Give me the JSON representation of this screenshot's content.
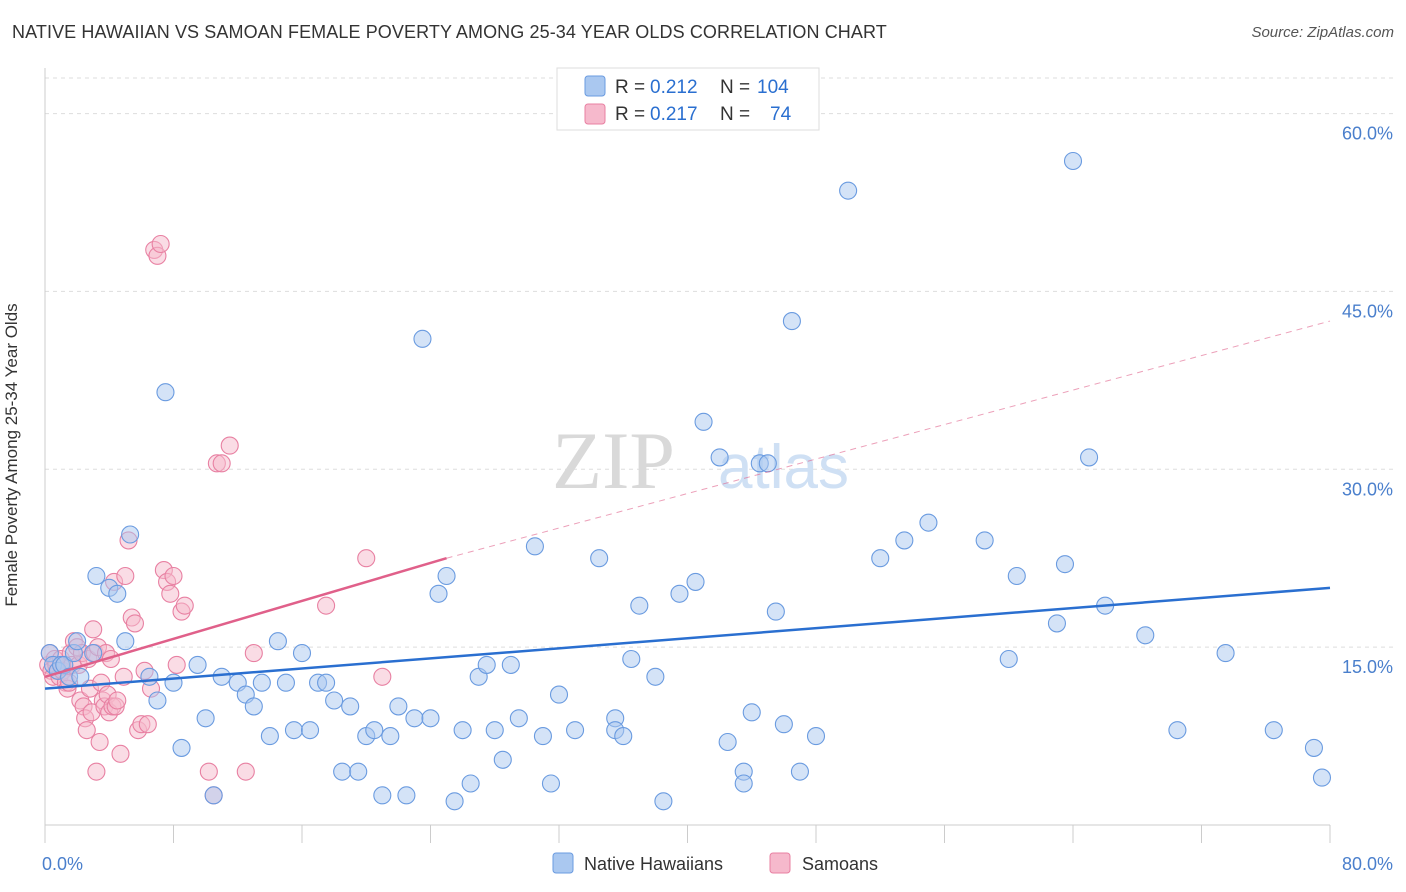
{
  "header": {
    "title": "NATIVE HAWAIIAN VS SAMOAN FEMALE POVERTY AMONG 25-34 YEAR OLDS CORRELATION CHART",
    "source": "Source: ZipAtlas.com"
  },
  "watermark": {
    "zip": "ZIP",
    "atlas": "atlas"
  },
  "colors": {
    "blue_fill": "#aac8f0",
    "blue_stroke": "#6a9be0",
    "blue_line": "#2a6fd0",
    "pink_fill": "#f6b9cc",
    "pink_stroke": "#e880a2",
    "pink_line": "#e0608a",
    "tick_text": "#4a7fcc",
    "grid": "#dddddd"
  },
  "legend_top": {
    "rows": [
      {
        "r_label": "R =",
        "r_value": "0.212",
        "n_label": "N =",
        "n_value": "104"
      },
      {
        "r_label": "R =",
        "r_value": "0.217",
        "n_label": "N =",
        "n_value": "74"
      }
    ]
  },
  "chart_data": {
    "type": "scatter",
    "title": "NATIVE HAWAIIAN VS SAMOAN FEMALE POVERTY AMONG 25-34 YEAR OLDS CORRELATION CHART",
    "xlabel": "",
    "ylabel": "Female Poverty Among 25-34 Year Olds",
    "xlim": [
      0,
      80
    ],
    "ylim": [
      0,
      63
    ],
    "x_tick_labels": [
      "0.0%",
      "80.0%"
    ],
    "y_ticks": [
      15,
      30,
      45,
      60
    ],
    "y_tick_labels": [
      "15.0%",
      "30.0%",
      "45.0%",
      "60.0%"
    ],
    "grid": true,
    "legend_position": "bottom",
    "series": [
      {
        "name": "Native Hawaiians",
        "r": 0.212,
        "n": 104,
        "trend": {
          "x0": 0,
          "y0": 11.5,
          "x1": 80,
          "y1": 20.0
        },
        "points": [
          [
            0.3,
            14.5
          ],
          [
            0.5,
            13.5
          ],
          [
            0.8,
            13.0
          ],
          [
            1.0,
            13.5
          ],
          [
            1.2,
            13.5
          ],
          [
            1.5,
            12.5
          ],
          [
            1.8,
            14.5
          ],
          [
            2.0,
            15.5
          ],
          [
            2.2,
            12.5
          ],
          [
            3.0,
            14.5
          ],
          [
            3.2,
            21.0
          ],
          [
            4.0,
            20.0
          ],
          [
            4.5,
            19.5
          ],
          [
            5.3,
            24.5
          ],
          [
            5.0,
            15.5
          ],
          [
            6.5,
            12.5
          ],
          [
            7.0,
            10.5
          ],
          [
            7.5,
            36.5
          ],
          [
            8.0,
            12.0
          ],
          [
            8.5,
            6.5
          ],
          [
            9.5,
            13.5
          ],
          [
            10.0,
            9.0
          ],
          [
            10.5,
            2.5
          ],
          [
            11.0,
            12.5
          ],
          [
            12.0,
            12.0
          ],
          [
            12.5,
            11.0
          ],
          [
            13.0,
            10.0
          ],
          [
            13.5,
            12.0
          ],
          [
            14.0,
            7.5
          ],
          [
            14.5,
            15.5
          ],
          [
            15.0,
            12.0
          ],
          [
            15.5,
            8.0
          ],
          [
            16.0,
            14.5
          ],
          [
            16.5,
            8.0
          ],
          [
            17.0,
            12.0
          ],
          [
            17.5,
            12.0
          ],
          [
            18.0,
            10.5
          ],
          [
            18.5,
            4.5
          ],
          [
            19.0,
            10.0
          ],
          [
            19.5,
            4.5
          ],
          [
            20.0,
            7.5
          ],
          [
            20.5,
            8.0
          ],
          [
            21.0,
            2.5
          ],
          [
            21.5,
            7.5
          ],
          [
            22.0,
            10.0
          ],
          [
            22.5,
            2.5
          ],
          [
            23.0,
            9.0
          ],
          [
            23.5,
            41.0
          ],
          [
            24.0,
            9.0
          ],
          [
            24.5,
            19.5
          ],
          [
            25.0,
            21.0
          ],
          [
            25.5,
            2.0
          ],
          [
            26.0,
            8.0
          ],
          [
            26.5,
            3.5
          ],
          [
            27.0,
            12.5
          ],
          [
            27.5,
            13.5
          ],
          [
            28.0,
            8.0
          ],
          [
            28.5,
            5.5
          ],
          [
            29.0,
            13.5
          ],
          [
            29.5,
            9.0
          ],
          [
            30.5,
            23.5
          ],
          [
            31.0,
            7.5
          ],
          [
            31.5,
            3.5
          ],
          [
            32.0,
            11.0
          ],
          [
            33.0,
            8.0
          ],
          [
            34.5,
            22.5
          ],
          [
            35.5,
            9.0
          ],
          [
            35.5,
            8.0
          ],
          [
            36.0,
            7.5
          ],
          [
            36.5,
            14.0
          ],
          [
            37.0,
            18.5
          ],
          [
            38.0,
            12.5
          ],
          [
            38.5,
            2.0
          ],
          [
            39.5,
            19.5
          ],
          [
            40.5,
            20.5
          ],
          [
            41.0,
            34.0
          ],
          [
            42.0,
            31.0
          ],
          [
            42.5,
            7.0
          ],
          [
            43.5,
            4.5
          ],
          [
            43.5,
            3.5
          ],
          [
            44.0,
            9.5
          ],
          [
            44.5,
            30.5
          ],
          [
            45.0,
            30.5
          ],
          [
            45.5,
            18.0
          ],
          [
            46.0,
            8.5
          ],
          [
            46.5,
            42.5
          ],
          [
            47.0,
            4.5
          ],
          [
            48.0,
            7.5
          ],
          [
            50.0,
            53.5
          ],
          [
            52.0,
            22.5
          ],
          [
            53.5,
            24.0
          ],
          [
            55.0,
            25.5
          ],
          [
            58.5,
            24.0
          ],
          [
            60.0,
            14.0
          ],
          [
            60.5,
            21.0
          ],
          [
            63.0,
            17.0
          ],
          [
            63.5,
            22.0
          ],
          [
            64.0,
            56.0
          ],
          [
            65.0,
            31.0
          ],
          [
            66.0,
            18.5
          ],
          [
            68.5,
            16.0
          ],
          [
            70.5,
            8.0
          ],
          [
            73.5,
            14.5
          ],
          [
            76.5,
            8.0
          ],
          [
            79.0,
            6.5
          ],
          [
            79.5,
            4.0
          ]
        ]
      },
      {
        "name": "Samoans",
        "r": 0.217,
        "n": 74,
        "trend": {
          "x0": 0,
          "y0": 12.5,
          "x1": 25,
          "y1": 22.5,
          "x_dash_end": 80,
          "y_dash_end": 42.5
        },
        "points": [
          [
            0.2,
            13.5
          ],
          [
            0.3,
            14.5
          ],
          [
            0.4,
            13.0
          ],
          [
            0.5,
            12.5
          ],
          [
            0.6,
            14.0
          ],
          [
            0.7,
            13.5
          ],
          [
            0.8,
            13.0
          ],
          [
            0.9,
            12.5
          ],
          [
            1.0,
            14.0
          ],
          [
            1.1,
            13.0
          ],
          [
            1.2,
            13.5
          ],
          [
            1.3,
            12.0
          ],
          [
            1.4,
            11.5
          ],
          [
            1.5,
            12.0
          ],
          [
            1.6,
            14.5
          ],
          [
            1.7,
            13.5
          ],
          [
            1.8,
            15.5
          ],
          [
            2.0,
            15.0
          ],
          [
            2.1,
            13.5
          ],
          [
            2.2,
            10.5
          ],
          [
            2.3,
            14.5
          ],
          [
            2.4,
            10.0
          ],
          [
            2.5,
            9.0
          ],
          [
            2.6,
            8.0
          ],
          [
            2.7,
            14.0
          ],
          [
            2.8,
            11.5
          ],
          [
            2.9,
            9.5
          ],
          [
            3.0,
            16.5
          ],
          [
            3.1,
            14.5
          ],
          [
            3.2,
            4.5
          ],
          [
            3.3,
            15.0
          ],
          [
            3.4,
            7.0
          ],
          [
            3.5,
            12.0
          ],
          [
            3.6,
            10.5
          ],
          [
            3.7,
            10.0
          ],
          [
            3.8,
            14.5
          ],
          [
            3.9,
            11.0
          ],
          [
            4.0,
            9.5
          ],
          [
            4.1,
            14.0
          ],
          [
            4.2,
            10.0
          ],
          [
            4.3,
            20.5
          ],
          [
            4.4,
            10.0
          ],
          [
            4.5,
            10.5
          ],
          [
            4.7,
            6.0
          ],
          [
            4.9,
            12.5
          ],
          [
            5.0,
            21.0
          ],
          [
            5.2,
            24.0
          ],
          [
            5.4,
            17.5
          ],
          [
            5.6,
            17.0
          ],
          [
            5.8,
            8.0
          ],
          [
            6.0,
            8.5
          ],
          [
            6.2,
            13.0
          ],
          [
            6.4,
            8.5
          ],
          [
            6.6,
            11.5
          ],
          [
            6.8,
            48.5
          ],
          [
            7.0,
            48.0
          ],
          [
            7.2,
            49.0
          ],
          [
            7.4,
            21.5
          ],
          [
            7.6,
            20.5
          ],
          [
            7.8,
            19.5
          ],
          [
            8.0,
            21.0
          ],
          [
            8.2,
            13.5
          ],
          [
            8.5,
            18.0
          ],
          [
            8.7,
            18.5
          ],
          [
            10.2,
            4.5
          ],
          [
            10.5,
            2.5
          ],
          [
            10.7,
            30.5
          ],
          [
            11.0,
            30.5
          ],
          [
            11.5,
            32.0
          ],
          [
            12.5,
            4.5
          ],
          [
            13.0,
            14.5
          ],
          [
            17.5,
            18.5
          ],
          [
            20.0,
            22.5
          ],
          [
            21.0,
            12.5
          ]
        ]
      }
    ]
  }
}
